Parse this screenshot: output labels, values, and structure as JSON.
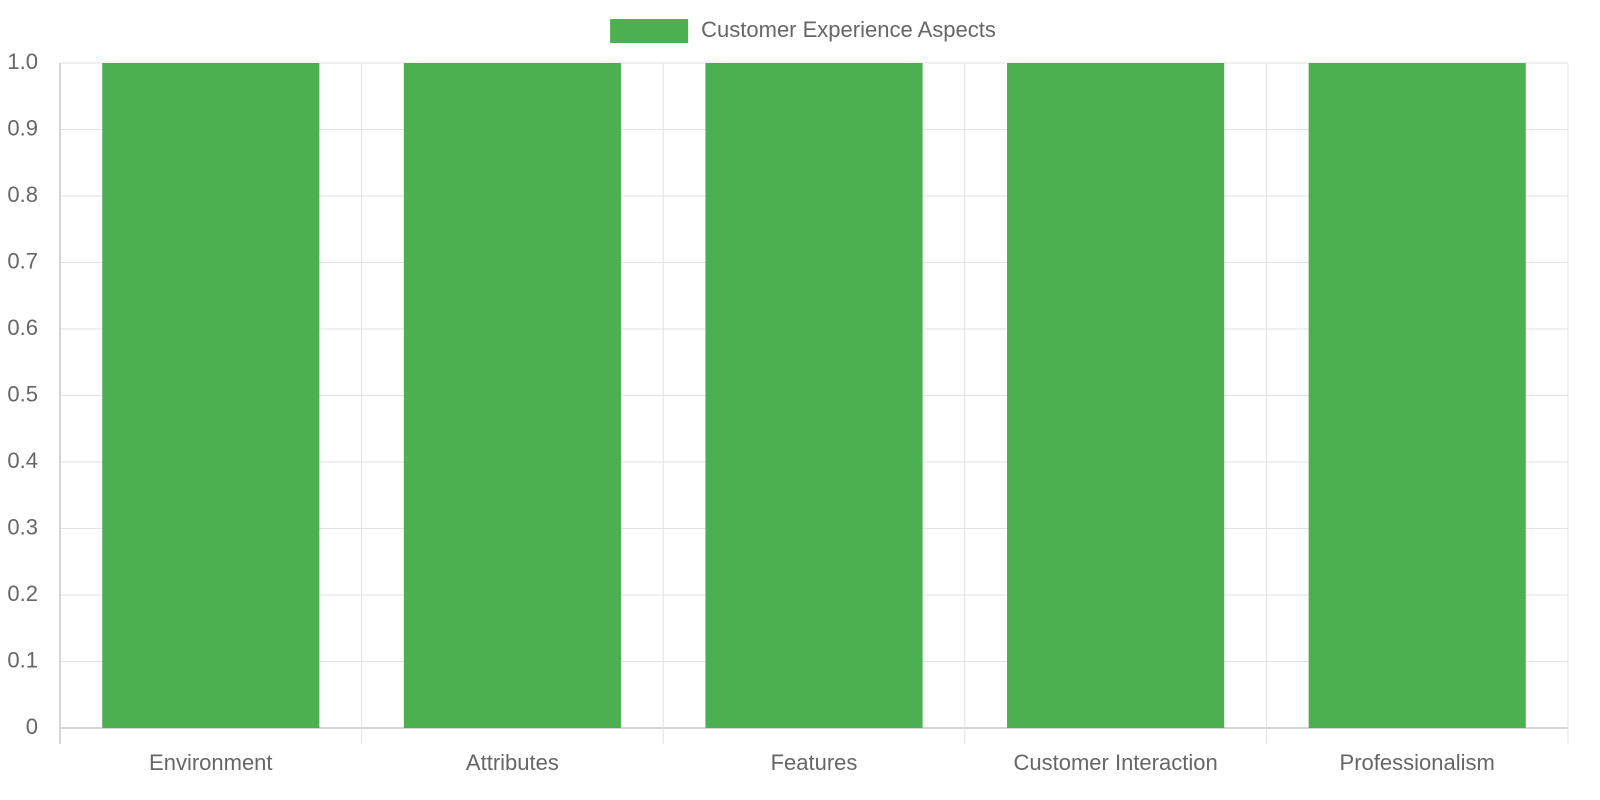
{
  "chart_data": {
    "type": "bar",
    "categories": [
      "Environment",
      "Attributes",
      "Features",
      "Customer Interaction",
      "Professionalism"
    ],
    "series": [
      {
        "name": "Customer Experience Aspects",
        "color": "#4caf50",
        "values": [
          1,
          1,
          1,
          1,
          1
        ]
      }
    ],
    "ylim": [
      0,
      1
    ],
    "yticks": [
      0,
      0.1,
      0.2,
      0.3,
      0.4,
      0.5,
      0.6,
      0.7,
      0.8,
      0.9,
      {
        "value": 1,
        "label": "1.0"
      }
    ],
    "grid": true,
    "legend": "top"
  }
}
